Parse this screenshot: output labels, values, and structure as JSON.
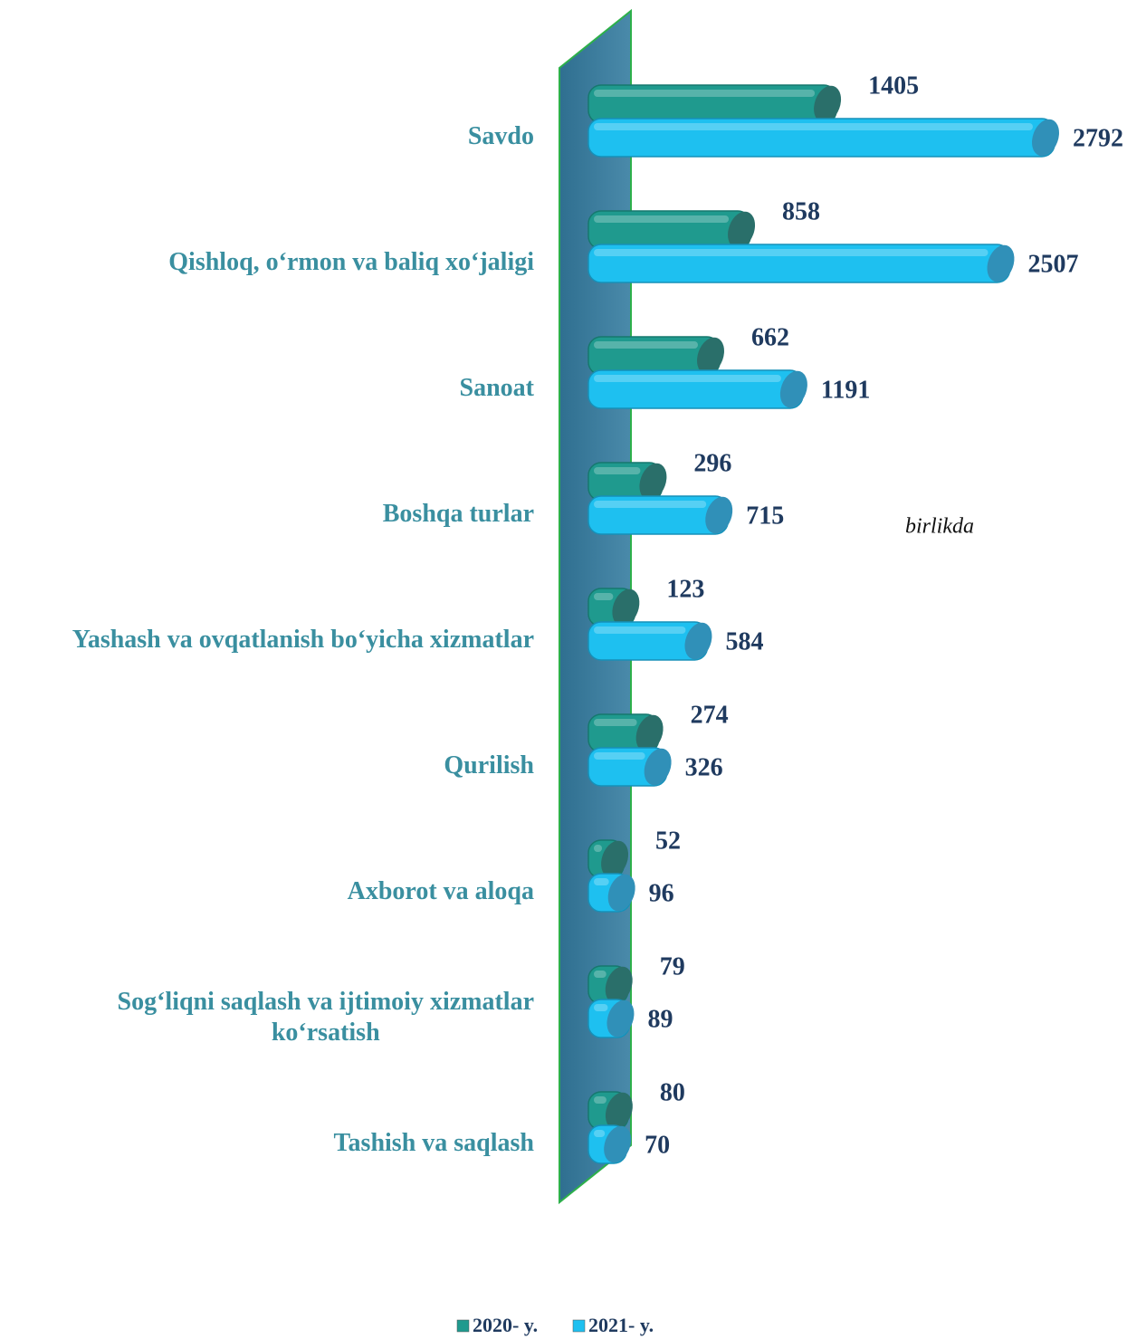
{
  "chart_data": {
    "type": "bar",
    "categories": [
      "Savdo",
      "Qishloq, o‘rmon  va baliq xo‘jaligi",
      "Sanoat",
      "Boshqa turlar",
      "Yashash va ovqatlanish bo‘yicha xizmatlar",
      "Qurilish",
      "Axborot va aloqa",
      "Sog‘liqni saqlash va ijtimoiy xizmatlar\nko‘rsatish",
      "Tashish va saqlash"
    ],
    "series": [
      {
        "name": "2020- y.",
        "color": "#1f9a8e",
        "values": [
          1405,
          858,
          662,
          296,
          123,
          274,
          52,
          79,
          80
        ]
      },
      {
        "name": "2021- y.",
        "color": "#1ec0f0",
        "values": [
          2792,
          2507,
          1191,
          715,
          584,
          326,
          96,
          89,
          70
        ]
      }
    ],
    "annotation": "birlikda"
  }
}
